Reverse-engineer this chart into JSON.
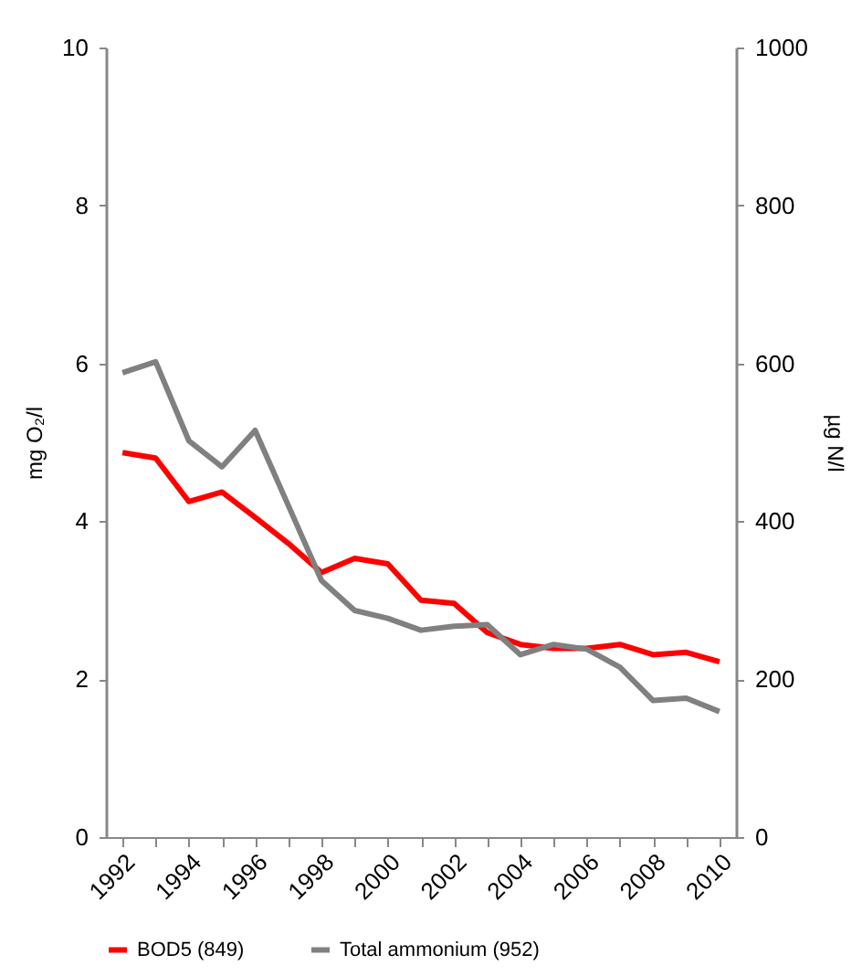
{
  "chart_data": {
    "type": "line",
    "x": [
      1992,
      1993,
      1994,
      1995,
      1996,
      1997,
      1998,
      1999,
      2000,
      2001,
      2002,
      2003,
      2004,
      2005,
      2006,
      2007,
      2008,
      2009,
      2010
    ],
    "series": [
      {
        "name": "BOD5 (849)",
        "color": "#ff0000",
        "values": [
          4.87,
          4.8,
          4.25,
          4.37,
          4.05,
          3.72,
          3.35,
          3.53,
          3.46,
          3.0,
          2.96,
          2.59,
          2.44,
          2.39,
          2.39,
          2.44,
          2.31,
          2.34,
          2.22
        ]
      },
      {
        "name": "Total ammonium (952)",
        "color": "#808080",
        "axis": "y2",
        "values": [
          588,
          602,
          502,
          469,
          515,
          420,
          325,
          287,
          277,
          262,
          267,
          269,
          231,
          244,
          238,
          215,
          173,
          176,
          159
        ]
      }
    ],
    "ylabel": "mg O₂/l",
    "y2label": "µg N/l",
    "xlim": [
      1991.5,
      2010.5
    ],
    "xticks": [
      1992,
      {
        "value": 1993,
        "label": null
      },
      1994,
      {
        "value": 1995,
        "label": null
      },
      1996,
      {
        "value": 1997,
        "label": null
      },
      1998,
      {
        "value": 1999,
        "label": null
      },
      2000,
      {
        "value": 2001,
        "label": null
      },
      2002,
      {
        "value": 2003,
        "label": null
      },
      2004,
      {
        "value": 2005,
        "label": null
      },
      2006,
      {
        "value": 2007,
        "label": null
      },
      2008,
      {
        "value": 2009,
        "label": null
      },
      2010
    ],
    "ylim": [
      0,
      10
    ],
    "yticks": [
      0,
      2,
      4,
      6,
      8,
      10
    ],
    "y2lim": [
      0,
      1000
    ],
    "y2ticks": [
      0,
      200,
      400,
      600,
      800,
      1000
    ],
    "legend": "bottom",
    "grid": false
  }
}
